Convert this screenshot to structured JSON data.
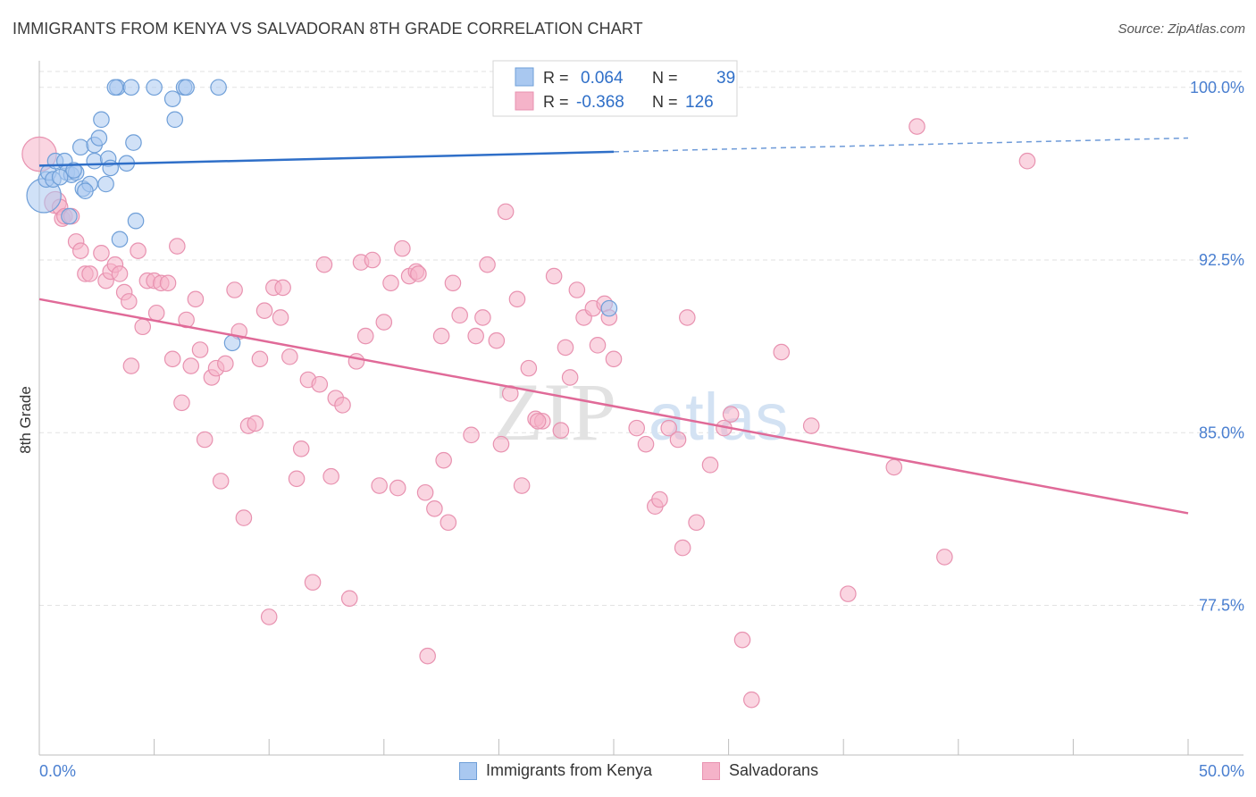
{
  "header": {
    "title": "IMMIGRANTS FROM KENYA VS SALVADORAN 8TH GRADE CORRELATION CHART",
    "source": "Source: ZipAtlas.com"
  },
  "colors": {
    "kenya_fill": "#a9c8f0",
    "kenya_stroke": "#6f9fd8",
    "kenya_line": "#2f6fc8",
    "salvadoran_fill": "#f5b3c9",
    "salvadoran_stroke": "#e892b0",
    "salvadoran_line": "#e06a98",
    "tick_label": "#4a7fd0",
    "grid": "#e2e2e2"
  },
  "watermark": {
    "zip": "ZIP",
    "atlas": "atlas"
  },
  "legend": {
    "rows": [
      {
        "r_label": "R =",
        "r_value": "0.064",
        "n_label": "N =",
        "n_value": "39"
      },
      {
        "r_label": "R =",
        "r_value": "-0.368",
        "n_label": "N =",
        "n_value": "126"
      }
    ]
  },
  "chart_data": {
    "type": "scatter",
    "xlabel": "",
    "ylabel": "8th Grade",
    "xlim": [
      0,
      50
    ],
    "ylim": [
      71.0,
      101.0
    ],
    "x_tick_labels": [
      "0.0%",
      "50.0%"
    ],
    "y_ticks": [
      77.5,
      85.0,
      92.5,
      100.0
    ],
    "y_tick_labels": [
      "77.5%",
      "85.0%",
      "92.5%",
      "100.0%"
    ],
    "grid": true,
    "legend_position": "top-center",
    "series": [
      {
        "name": "Immigrants from Kenya",
        "trend": {
          "x0": 0,
          "y0": 96.6,
          "x1": 25.0,
          "y1": 97.2,
          "dash_to_x": 50,
          "dash_to_y": 97.8
        },
        "points": [
          [
            0.2,
            95.3,
            22
          ],
          [
            0.3,
            96.0,
            10
          ],
          [
            0.4,
            96.3,
            10
          ],
          [
            0.6,
            96.0,
            10
          ],
          [
            0.7,
            96.8,
            10
          ],
          [
            1.1,
            96.8,
            10
          ],
          [
            1.2,
            96.3,
            10
          ],
          [
            1.3,
            94.4,
            10
          ],
          [
            1.4,
            96.2,
            10
          ],
          [
            1.6,
            96.3,
            10
          ],
          [
            1.8,
            97.4,
            10
          ],
          [
            1.9,
            95.6,
            10
          ],
          [
            2.2,
            95.8,
            10
          ],
          [
            2.4,
            97.5,
            10
          ],
          [
            2.4,
            96.8,
            10
          ],
          [
            2.6,
            97.8,
            10
          ],
          [
            2.7,
            98.6,
            10
          ],
          [
            2.9,
            95.8,
            10
          ],
          [
            3.0,
            96.9,
            10
          ],
          [
            3.1,
            96.5,
            10
          ],
          [
            3.4,
            100.0,
            10
          ],
          [
            3.5,
            93.4,
            10
          ],
          [
            3.8,
            96.7,
            10
          ],
          [
            4.0,
            100.0,
            10
          ],
          [
            4.1,
            97.6,
            10
          ],
          [
            4.2,
            94.2,
            10
          ],
          [
            5.0,
            100.0,
            10
          ],
          [
            5.8,
            99.5,
            10
          ],
          [
            5.9,
            98.6,
            10
          ],
          [
            6.3,
            100.0,
            10
          ],
          [
            7.8,
            100.0,
            10
          ],
          [
            8.4,
            88.9,
            10
          ],
          [
            23.5,
            100.0,
            10
          ],
          [
            24.8,
            90.4,
            10
          ],
          [
            2.0,
            95.5,
            10
          ],
          [
            1.5,
            96.4,
            10
          ],
          [
            0.9,
            96.1,
            10
          ],
          [
            3.3,
            100.0,
            10
          ],
          [
            6.4,
            100.0,
            10
          ]
        ]
      },
      {
        "name": "Salvadorans",
        "trend": {
          "x0": 0,
          "y0": 90.8,
          "x1": 50,
          "y1": 81.5
        },
        "points": [
          [
            0.0,
            97.1,
            22
          ],
          [
            0.7,
            95.0,
            14
          ],
          [
            0.9,
            94.8,
            10
          ],
          [
            1.0,
            94.3,
            10
          ],
          [
            1.1,
            94.4,
            10
          ],
          [
            1.4,
            94.4,
            10
          ],
          [
            1.6,
            93.3,
            10
          ],
          [
            1.8,
            92.9,
            10
          ],
          [
            2.0,
            91.9,
            10
          ],
          [
            2.2,
            91.9,
            10
          ],
          [
            2.7,
            92.8,
            10
          ],
          [
            2.9,
            91.6,
            10
          ],
          [
            3.1,
            92.0,
            10
          ],
          [
            3.3,
            92.3,
            10
          ],
          [
            3.5,
            91.9,
            10
          ],
          [
            3.7,
            91.1,
            10
          ],
          [
            3.9,
            90.7,
            10
          ],
          [
            4.0,
            87.9,
            10
          ],
          [
            4.3,
            92.9,
            10
          ],
          [
            4.5,
            89.6,
            10
          ],
          [
            4.7,
            91.6,
            10
          ],
          [
            5.0,
            91.6,
            10
          ],
          [
            5.1,
            90.2,
            10
          ],
          [
            5.3,
            91.5,
            10
          ],
          [
            5.6,
            91.5,
            10
          ],
          [
            5.8,
            88.2,
            10
          ],
          [
            6.0,
            93.1,
            10
          ],
          [
            6.2,
            86.3,
            10
          ],
          [
            6.4,
            89.9,
            10
          ],
          [
            6.6,
            87.9,
            10
          ],
          [
            6.8,
            90.8,
            10
          ],
          [
            7.0,
            88.6,
            10
          ],
          [
            7.2,
            84.7,
            10
          ],
          [
            7.5,
            87.4,
            10
          ],
          [
            7.7,
            87.8,
            10
          ],
          [
            7.9,
            82.9,
            10
          ],
          [
            8.1,
            88.0,
            10
          ],
          [
            8.5,
            91.2,
            10
          ],
          [
            8.7,
            89.4,
            10
          ],
          [
            8.9,
            81.3,
            10
          ],
          [
            9.1,
            85.3,
            10
          ],
          [
            9.4,
            85.4,
            10
          ],
          [
            9.6,
            88.2,
            10
          ],
          [
            9.8,
            90.3,
            10
          ],
          [
            10.0,
            77.0,
            10
          ],
          [
            10.2,
            91.3,
            10
          ],
          [
            10.5,
            90.0,
            10
          ],
          [
            10.6,
            91.3,
            10
          ],
          [
            10.9,
            88.3,
            10
          ],
          [
            11.2,
            83.0,
            10
          ],
          [
            11.4,
            84.3,
            10
          ],
          [
            11.7,
            87.3,
            10
          ],
          [
            11.9,
            78.5,
            10
          ],
          [
            12.2,
            87.1,
            10
          ],
          [
            12.4,
            92.3,
            10
          ],
          [
            12.7,
            83.1,
            10
          ],
          [
            12.9,
            86.5,
            10
          ],
          [
            13.2,
            86.2,
            10
          ],
          [
            13.5,
            77.8,
            10
          ],
          [
            13.8,
            88.1,
            10
          ],
          [
            14.0,
            92.4,
            10
          ],
          [
            14.2,
            89.2,
            10
          ],
          [
            14.5,
            92.5,
            10
          ],
          [
            14.8,
            82.7,
            10
          ],
          [
            15.0,
            89.8,
            10
          ],
          [
            15.3,
            91.5,
            10
          ],
          [
            15.6,
            82.6,
            10
          ],
          [
            15.8,
            93.0,
            10
          ],
          [
            16.1,
            91.8,
            10
          ],
          [
            16.4,
            92.0,
            10
          ],
          [
            16.8,
            82.4,
            10
          ],
          [
            16.9,
            75.3,
            10
          ],
          [
            17.2,
            81.7,
            10
          ],
          [
            17.5,
            89.2,
            10
          ],
          [
            17.6,
            83.8,
            10
          ],
          [
            17.8,
            81.1,
            10
          ],
          [
            18.0,
            91.5,
            10
          ],
          [
            18.3,
            90.1,
            10
          ],
          [
            18.8,
            84.9,
            10
          ],
          [
            19.0,
            89.2,
            10
          ],
          [
            19.3,
            90.0,
            10
          ],
          [
            19.5,
            92.3,
            10
          ],
          [
            19.9,
            89.0,
            10
          ],
          [
            20.1,
            84.5,
            10
          ],
          [
            20.3,
            94.6,
            10
          ],
          [
            20.5,
            86.7,
            10
          ],
          [
            20.8,
            90.8,
            10
          ],
          [
            21.0,
            82.7,
            10
          ],
          [
            21.3,
            87.8,
            10
          ],
          [
            21.6,
            85.6,
            10
          ],
          [
            21.9,
            85.5,
            10
          ],
          [
            22.4,
            91.8,
            10
          ],
          [
            22.7,
            85.1,
            10
          ],
          [
            22.9,
            88.7,
            10
          ],
          [
            23.1,
            87.4,
            10
          ],
          [
            23.4,
            91.2,
            10
          ],
          [
            23.7,
            90.0,
            10
          ],
          [
            24.1,
            90.4,
            10
          ],
          [
            24.3,
            88.8,
            10
          ],
          [
            24.6,
            90.6,
            10
          ],
          [
            24.8,
            90.0,
            10
          ],
          [
            25.0,
            88.2,
            10
          ],
          [
            26.0,
            85.2,
            10
          ],
          [
            26.1,
            100.0,
            10
          ],
          [
            26.4,
            84.5,
            10
          ],
          [
            26.8,
            81.8,
            10
          ],
          [
            27.0,
            82.1,
            10
          ],
          [
            27.4,
            85.2,
            10
          ],
          [
            27.8,
            84.7,
            10
          ],
          [
            28.0,
            80.0,
            10
          ],
          [
            28.2,
            90.0,
            10
          ],
          [
            28.6,
            81.1,
            10
          ],
          [
            29.2,
            83.6,
            10
          ],
          [
            30.1,
            85.8,
            10
          ],
          [
            30.6,
            76.0,
            10
          ],
          [
            31.0,
            73.4,
            10
          ],
          [
            32.3,
            88.5,
            10
          ],
          [
            33.6,
            85.3,
            10
          ],
          [
            35.2,
            78.0,
            10
          ],
          [
            37.2,
            83.5,
            10
          ],
          [
            38.2,
            98.3,
            10
          ],
          [
            39.4,
            79.6,
            10
          ],
          [
            43.0,
            96.8,
            10
          ],
          [
            16.5,
            91.9,
            10
          ],
          [
            29.8,
            85.2,
            10
          ],
          [
            21.7,
            85.5,
            10
          ]
        ]
      }
    ]
  },
  "bottom_legend": {
    "items": [
      {
        "label": "Immigrants from Kenya"
      },
      {
        "label": "Salvadorans"
      }
    ]
  }
}
